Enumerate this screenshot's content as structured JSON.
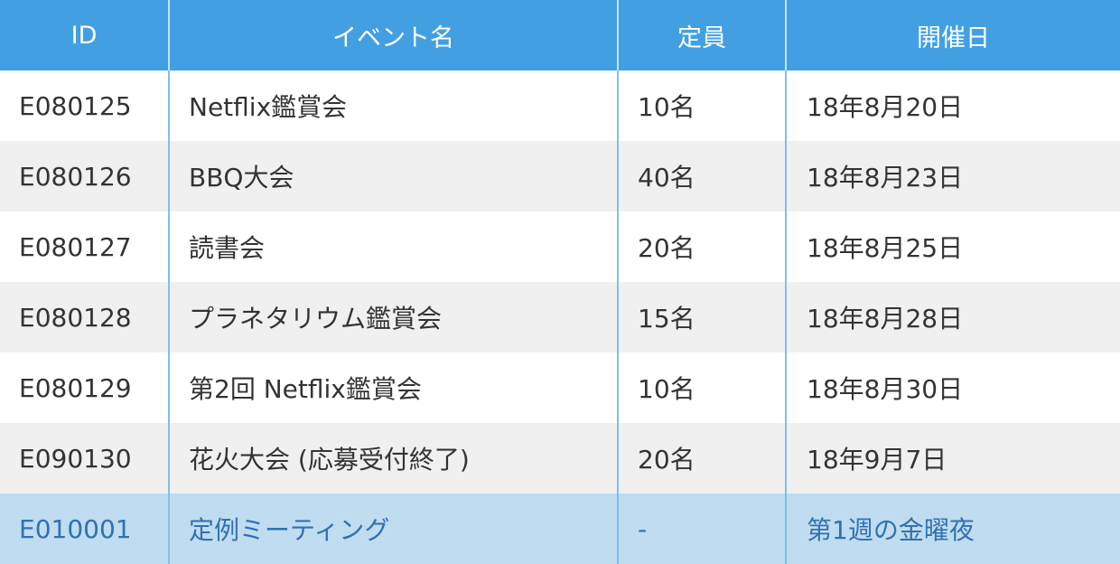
{
  "table": {
    "headers": {
      "id": "ID",
      "name": "イベント名",
      "capacity": "定員",
      "date": "開催日"
    },
    "rows": [
      {
        "id": "E080125",
        "name": "Netflix鑑賞会",
        "capacity": "10名",
        "date": "18年8月20日"
      },
      {
        "id": "E080126",
        "name": "BBQ大会",
        "capacity": "40名",
        "date": "18年8月23日"
      },
      {
        "id": "E080127",
        "name": "読書会",
        "capacity": "20名",
        "date": "18年8月25日"
      },
      {
        "id": "E080128",
        "name": "プラネタリウム鑑賞会",
        "capacity": "15名",
        "date": "18年8月28日"
      },
      {
        "id": "E080129",
        "name": "第2回 Netflix鑑賞会",
        "capacity": "10名",
        "date": "18年8月30日"
      },
      {
        "id": "E090130",
        "name": "花火大会 (応募受付終了)",
        "capacity": "20名",
        "date": "18年9月7日"
      },
      {
        "id": "E010001",
        "name": "定例ミーティング",
        "capacity": "-",
        "date": "第1週の金曜夜"
      }
    ],
    "colors": {
      "header_bg": "#42a0e2",
      "header_text": "#ffffff",
      "row_alt_bg": "#f0f0f0",
      "highlight_bg": "#c0dcf1",
      "highlight_text": "#2f72b0",
      "divider": "#7fc0ea"
    }
  }
}
